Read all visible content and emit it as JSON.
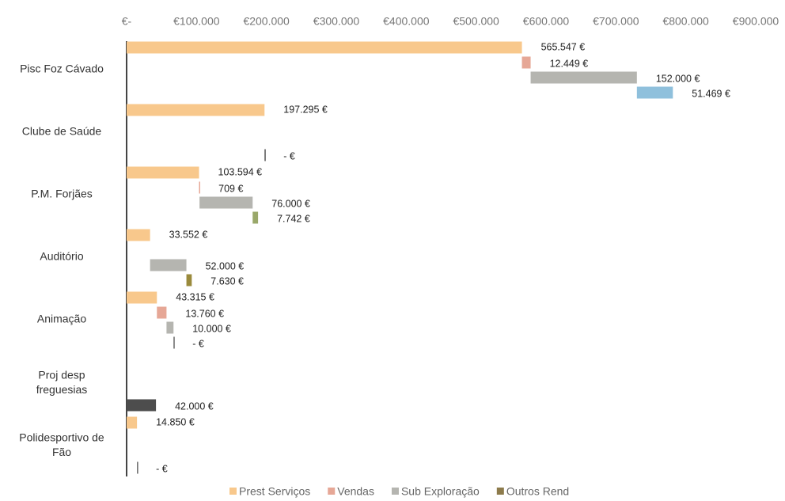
{
  "chart_data": {
    "type": "waterfall-bar",
    "categories": [
      "Pisc Foz Cávado",
      "Clube de Saúde",
      "P.M. Forjães",
      "Auditório",
      "Animação",
      "Proj desp freguesias",
      "Polidesportivo de Fão"
    ],
    "series": [
      {
        "name": "Prest Serviços",
        "color": "#f8c88c",
        "values": [
          565547,
          197295,
          103594,
          33552,
          43315,
          null,
          14850
        ],
        "value_labels": [
          "565.547 €",
          "197.295 €",
          "103.594 €",
          "33.552 €",
          "43.315 €",
          null,
          "14.850 €"
        ]
      },
      {
        "name": "Vendas",
        "color": "#e6a796",
        "values": [
          12449,
          null,
          709,
          null,
          13760,
          null,
          null
        ],
        "value_labels": [
          "12.449 €",
          null,
          "709 €",
          null,
          "13.760 €",
          null,
          null
        ]
      },
      {
        "name": "Sub Exploração",
        "color": "#b5b5b0",
        "values": [
          152000,
          null,
          76000,
          52000,
          10000,
          null,
          null
        ],
        "value_labels": [
          "152.000 €",
          null,
          "76.000 €",
          "52.000 €",
          "10.000 €",
          null,
          null
        ]
      },
      {
        "name": "Outros Rend",
        "color": "#8d7b4c",
        "colors": [
          "#8fc0dc",
          "#555555",
          "#9aa86a",
          "#9a8a3c",
          "#666666",
          "#4d4d4d",
          "#666666"
        ],
        "values": [
          51469,
          0,
          7742,
          7630,
          0,
          42000,
          0
        ],
        "value_labels": [
          "51.469 €",
          "- €",
          "7.742 €",
          "7.630 €",
          "- €",
          "42.000 €",
          "- €"
        ]
      }
    ],
    "xlim": [
      0,
      900000
    ],
    "xticks": [
      {
        "value": 0,
        "label": "€-"
      },
      {
        "value": 100000,
        "label": "€100.000"
      },
      {
        "value": 200000,
        "label": "€200.000"
      },
      {
        "value": 300000,
        "label": "€300.000"
      },
      {
        "value": 400000,
        "label": "€400.000"
      },
      {
        "value": 500000,
        "label": "€500.000"
      },
      {
        "value": 600000,
        "label": "€600.000"
      },
      {
        "value": 700000,
        "label": "€700.000"
      },
      {
        "value": 800000,
        "label": "€800.000"
      },
      {
        "value": 900000,
        "label": "€900.000"
      }
    ],
    "legend": "bottom"
  }
}
